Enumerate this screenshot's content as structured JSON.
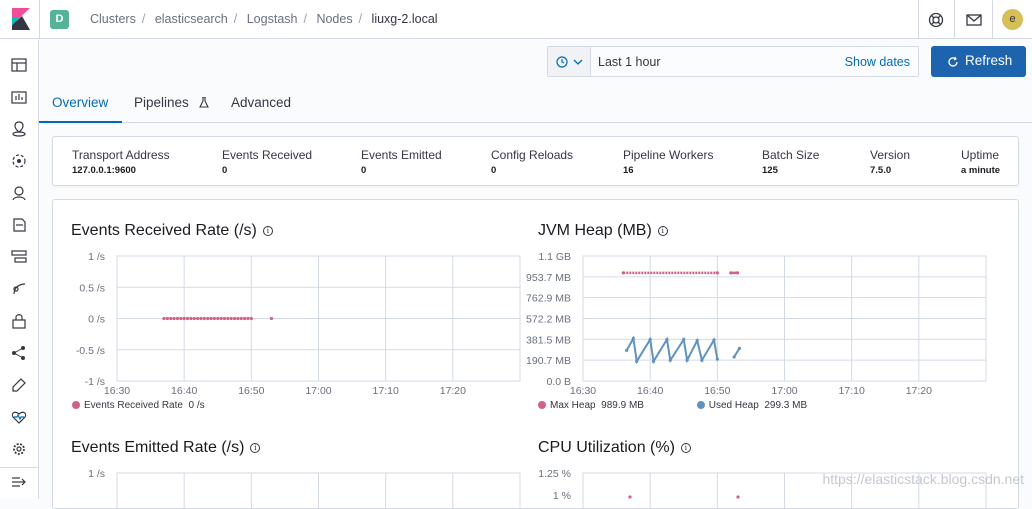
{
  "header": {
    "space_initial": "D",
    "avatar_initial": "e",
    "breadcrumbs": [
      "Clusters",
      "elasticsearch",
      "Logstash",
      "Nodes",
      "liuxg-2.local"
    ]
  },
  "time_picker": {
    "label": "Last 1 hour",
    "show_dates": "Show dates",
    "refresh": "Refresh"
  },
  "tabs": [
    {
      "label": "Overview",
      "selected": true
    },
    {
      "label": "Pipelines",
      "selected": false
    },
    {
      "label": "Advanced",
      "selected": false
    }
  ],
  "summary": [
    {
      "label": "Transport Address",
      "value": "127.0.0.1:9600"
    },
    {
      "label": "Events Received",
      "value": "0"
    },
    {
      "label": "Events Emitted",
      "value": "0"
    },
    {
      "label": "Config Reloads",
      "value": "0"
    },
    {
      "label": "Pipeline Workers",
      "value": "16"
    },
    {
      "label": "Batch Size",
      "value": "125"
    },
    {
      "label": "Version",
      "value": "7.5.0"
    },
    {
      "label": "Uptime",
      "value": "a minute"
    }
  ],
  "colors": {
    "pink": "#d36086",
    "blue": "#6092c0",
    "accent": "#006bb4",
    "button": "#1d63ad"
  },
  "chart_data": [
    {
      "type": "scatter",
      "title": "Events Received Rate (/s)",
      "y_ticks": [
        "1 /s",
        "0.5 /s",
        "0 /s",
        "-0.5 /s",
        "-1 /s"
      ],
      "x_ticks": [
        "16:30",
        "16:40",
        "16:50",
        "17:00",
        "17:10",
        "17:20"
      ],
      "ylim": [
        -1,
        1
      ],
      "xlim": [
        "16:30",
        "17:30"
      ],
      "series": [
        {
          "name": "Events Received Rate",
          "color": "#d36086",
          "legend_value": "0 /s",
          "points": [
            [
              "16:37",
              0
            ],
            [
              "16:37.5",
              0
            ],
            [
              "16:38",
              0
            ],
            [
              "16:38.5",
              0
            ],
            [
              "16:39",
              0
            ],
            [
              "16:39.5",
              0
            ],
            [
              "16:40",
              0
            ],
            [
              "16:40.5",
              0
            ],
            [
              "16:41",
              0
            ],
            [
              "16:41.5",
              0
            ],
            [
              "16:42",
              0
            ],
            [
              "16:42.5",
              0
            ],
            [
              "16:43",
              0
            ],
            [
              "16:43.5",
              0
            ],
            [
              "16:44",
              0
            ],
            [
              "16:44.5",
              0
            ],
            [
              "16:45",
              0
            ],
            [
              "16:45.5",
              0
            ],
            [
              "16:46",
              0
            ],
            [
              "16:46.5",
              0
            ],
            [
              "16:47",
              0
            ],
            [
              "16:47.5",
              0
            ],
            [
              "16:48",
              0
            ],
            [
              "16:48.5",
              0
            ],
            [
              "16:49",
              0
            ],
            [
              "16:49.5",
              0
            ],
            [
              "16:50",
              0
            ],
            [
              "16:53",
              0
            ]
          ]
        }
      ]
    },
    {
      "type": "line",
      "title": "JVM Heap (MB)",
      "y_ticks": [
        "1.1 GB",
        "953.7 MB",
        "762.9 MB",
        "572.2 MB",
        "381.5 MB",
        "190.7 MB",
        "0.0 B"
      ],
      "x_ticks": [
        "16:30",
        "16:40",
        "16:50",
        "17:00",
        "17:10",
        "17:20"
      ],
      "ylim": [
        0,
        1144
      ],
      "xlim": [
        "16:30",
        "17:30"
      ],
      "series": [
        {
          "name": "Max Heap",
          "color": "#d36086",
          "legend_value": "989.9 MB",
          "points": [
            [
              "16:36",
              989.9
            ],
            [
              "16:50",
              989.9
            ],
            [
              "16:52",
              989.9
            ],
            [
              "16:53",
              989.9
            ]
          ]
        },
        {
          "name": "Used Heap",
          "color": "#6092c0",
          "legend_value": "299.3 MB",
          "points": [
            [
              "16:36.5",
              280
            ],
            [
              "16:37.5",
              390
            ],
            [
              "16:38",
              180
            ],
            [
              "16:40",
              380
            ],
            [
              "16:40.5",
              180
            ],
            [
              "16:42.5",
              380
            ],
            [
              "16:43",
              190
            ],
            [
              "16:45",
              380
            ],
            [
              "16:45.5",
              190
            ],
            [
              "16:47",
              370
            ],
            [
              "16:47.7",
              190
            ],
            [
              "16:49.5",
              375
            ],
            [
              "16:50",
              200
            ],
            [
              "16:52.5",
              220
            ],
            [
              "16:53.3",
              299.3
            ]
          ]
        }
      ]
    },
    {
      "type": "line",
      "title": "Events Emitted Rate (/s)",
      "y_ticks": [
        "1 /s"
      ],
      "partial": true
    },
    {
      "type": "line",
      "title": "CPU Utilization (%)",
      "y_ticks": [
        "1.25 %",
        "1 %"
      ],
      "partial": true
    }
  ],
  "watermark": "https://elasticstack.blog.csdn.net"
}
